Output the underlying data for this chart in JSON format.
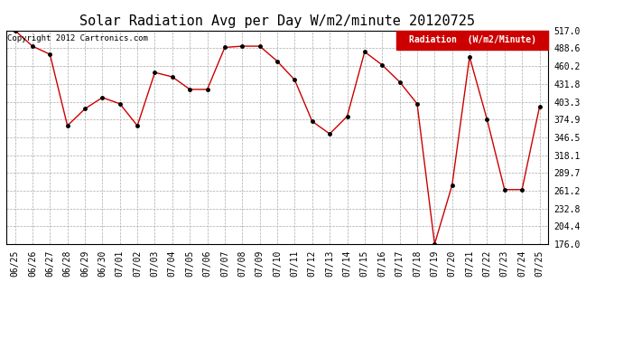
{
  "title": "Solar Radiation Avg per Day W/m2/minute 20120725",
  "copyright": "Copyright 2012 Cartronics.com",
  "legend_label": "Radiation  (W/m2/Minute)",
  "dates": [
    "06/25",
    "06/26",
    "06/27",
    "06/28",
    "06/29",
    "06/30",
    "07/01",
    "07/02",
    "07/03",
    "07/04",
    "07/05",
    "07/06",
    "07/07",
    "07/08",
    "07/09",
    "07/10",
    "07/11",
    "07/12",
    "07/13",
    "07/14",
    "07/15",
    "07/16",
    "07/17",
    "07/18",
    "07/19",
    "07/20",
    "07/21",
    "07/22",
    "07/23",
    "07/24",
    "07/25"
  ],
  "values": [
    517.0,
    492.0,
    479.0,
    365.0,
    392.0,
    410.0,
    400.0,
    365.0,
    450.0,
    443.0,
    423.0,
    423.0,
    490.0,
    492.0,
    492.0,
    468.0,
    438.0,
    372.0,
    352.0,
    380.0,
    483.0,
    462.0,
    435.0,
    400.0,
    176.0,
    270.0,
    475.0,
    375.0,
    263.0,
    263.0,
    395.0
  ],
  "line_color": "#cc0000",
  "marker_color": "#000000",
  "bg_color": "#ffffff",
  "grid_color": "#aaaaaa",
  "ylim_min": 176.0,
  "ylim_max": 517.0,
  "yticks": [
    176.0,
    204.4,
    232.8,
    261.2,
    289.7,
    318.1,
    346.5,
    374.9,
    403.3,
    431.8,
    460.2,
    488.6,
    517.0
  ],
  "title_fontsize": 11,
  "axis_fontsize": 7,
  "copyright_fontsize": 6.5,
  "legend_bg": "#cc0000",
  "legend_text_color": "#ffffff",
  "legend_fontsize": 7
}
